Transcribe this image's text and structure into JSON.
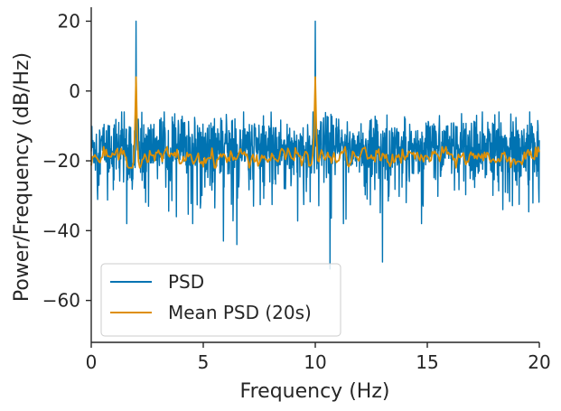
{
  "chart_data": {
    "type": "line",
    "title": "",
    "xlabel": "Frequency (Hz)",
    "ylabel": "Power/Frequency (dB/Hz)",
    "xlim": [
      0,
      20
    ],
    "ylim": [
      -72,
      24
    ],
    "xticks": [
      0,
      5,
      10,
      15,
      20
    ],
    "xtick_labels": [
      "0",
      "5",
      "10",
      "15",
      "20"
    ],
    "yticks": [
      -60,
      -40,
      -20,
      0,
      20
    ],
    "ytick_labels": [
      "−60",
      "−40",
      "−20",
      "0",
      "20"
    ],
    "grid": false,
    "legend_position": "lower-left",
    "series": [
      {
        "name": "PSD",
        "color": "#0173b2",
        "description_values": {
          "baseline_mean_db": -16,
          "baseline_range_db": [
            -38,
            -6
          ],
          "peaks": [
            {
              "x": 2,
              "y": 20
            },
            {
              "x": 10,
              "y": 20
            }
          ],
          "notable_dips": [
            {
              "x": 10.65,
              "y": -51
            },
            {
              "x": 13.0,
              "y": -49
            },
            {
              "x": 6.5,
              "y": -44
            },
            {
              "x": 5.9,
              "y": -43
            }
          ]
        }
      },
      {
        "name": "Mean PSD (20s)",
        "color": "#de8f05",
        "description_values": {
          "baseline_mean_db": -19,
          "baseline_range_db": [
            -22,
            -16
          ],
          "peaks": [
            {
              "x": 2,
              "y": 4
            },
            {
              "x": 10,
              "y": 4
            }
          ]
        }
      }
    ]
  }
}
